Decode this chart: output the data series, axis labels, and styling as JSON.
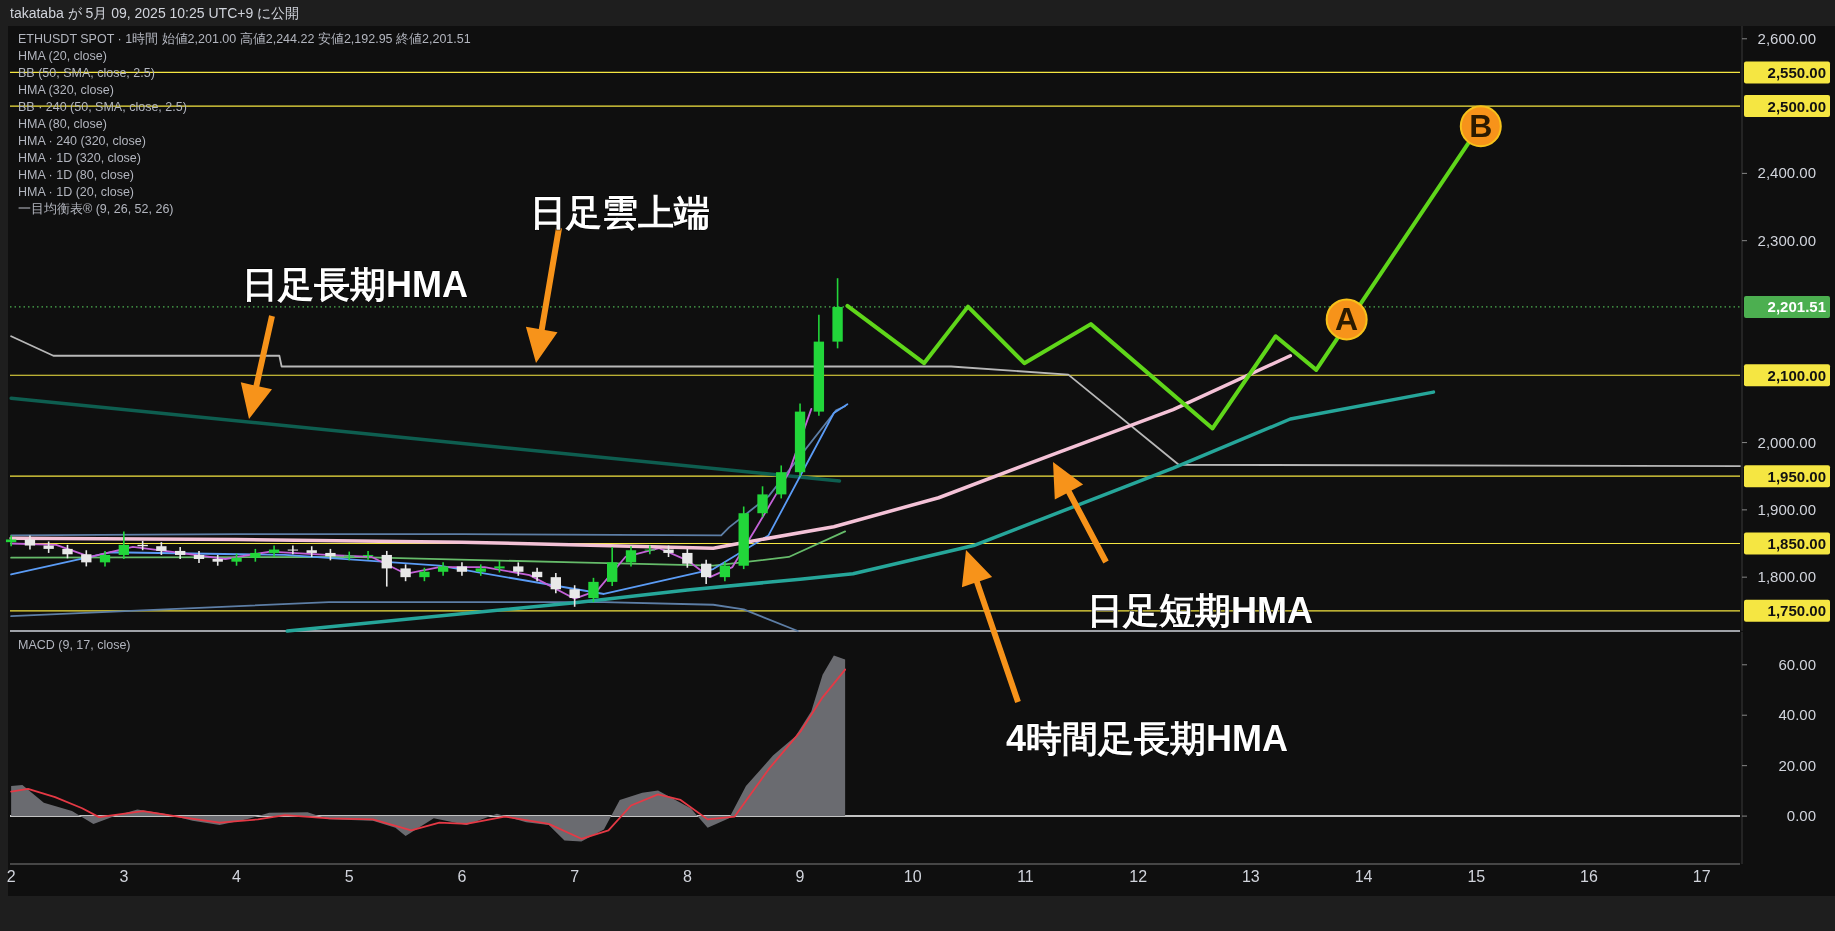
{
  "chart_data": [
    {
      "type": "candlestick",
      "title": "ETHUSDT SPOT · 1時間  始値2,201.00  高値2,244.22  安値2,192.95  終値2,201.51",
      "subtitle": "takataba が 5月 09, 2025 10:25 UTC+9 に公開",
      "x": [
        2.0,
        2.167,
        2.333,
        2.5,
        2.667,
        2.833,
        3.0,
        3.167,
        3.333,
        3.5,
        3.667,
        3.833,
        4.0,
        4.167,
        4.333,
        4.5,
        4.667,
        4.833,
        5.0,
        5.167,
        5.333,
        5.5,
        5.667,
        5.833,
        6.0,
        6.167,
        6.333,
        6.5,
        6.667,
        6.833,
        7.0,
        7.167,
        7.333,
        7.5,
        7.667,
        7.833,
        8.0,
        8.167,
        8.333,
        8.5,
        8.667,
        8.833,
        9.0,
        9.167,
        9.333
      ],
      "ohlc": [
        [
          1852,
          1862,
          1846,
          1856
        ],
        [
          1856,
          1862,
          1841,
          1847
        ],
        [
          1847,
          1853,
          1836,
          1842
        ],
        [
          1842,
          1848,
          1828,
          1834
        ],
        [
          1834,
          1840,
          1816,
          1822
        ],
        [
          1822,
          1839,
          1816,
          1833
        ],
        [
          1833,
          1868,
          1827,
          1848
        ],
        [
          1848,
          1854,
          1840,
          1846
        ],
        [
          1846,
          1852,
          1833,
          1839
        ],
        [
          1839,
          1845,
          1827,
          1833
        ],
        [
          1833,
          1839,
          1821,
          1827
        ],
        [
          1827,
          1833,
          1817,
          1823
        ],
        [
          1823,
          1835,
          1817,
          1829
        ],
        [
          1829,
          1842,
          1823,
          1836
        ],
        [
          1836,
          1847,
          1830,
          1841
        ],
        [
          1841,
          1847,
          1834,
          1840
        ],
        [
          1840,
          1846,
          1830,
          1836
        ],
        [
          1836,
          1842,
          1825,
          1831
        ],
        [
          1831,
          1838,
          1825,
          1832
        ],
        [
          1832,
          1839,
          1826,
          1833
        ],
        [
          1833,
          1839,
          1786,
          1813
        ],
        [
          1813,
          1819,
          1794,
          1800
        ],
        [
          1800,
          1814,
          1794,
          1808
        ],
        [
          1808,
          1822,
          1802,
          1816
        ],
        [
          1816,
          1822,
          1802,
          1808
        ],
        [
          1808,
          1819,
          1802,
          1813
        ],
        [
          1813,
          1824,
          1807,
          1816
        ],
        [
          1816,
          1822,
          1802,
          1808
        ],
        [
          1808,
          1814,
          1794,
          1800
        ],
        [
          1800,
          1806,
          1776,
          1782
        ],
        [
          1782,
          1788,
          1756,
          1769
        ],
        [
          1769,
          1799,
          1763,
          1793
        ],
        [
          1793,
          1845,
          1787,
          1822
        ],
        [
          1822,
          1846,
          1816,
          1840
        ],
        [
          1840,
          1847,
          1834,
          1841
        ],
        [
          1841,
          1847,
          1830,
          1836
        ],
        [
          1836,
          1842,
          1814,
          1820
        ],
        [
          1820,
          1826,
          1790,
          1800
        ],
        [
          1800,
          1823,
          1794,
          1817
        ],
        [
          1817,
          1905,
          1812,
          1895
        ],
        [
          1895,
          1935,
          1889,
          1923
        ],
        [
          1923,
          1966,
          1917,
          1956
        ],
        [
          1956,
          2058,
          1950,
          2046
        ],
        [
          2046,
          2190,
          2040,
          2150
        ],
        [
          2150,
          2244.22,
          2140,
          2201.51
        ]
      ],
      "series": [
        {
          "type": "line",
          "color": "#0e5e50",
          "x": [
            2.0,
            5.5,
            9.35
          ],
          "values": [
            2066,
            2007,
            1943
          ]
        },
        {
          "type": "line",
          "color": "#b8b8b8",
          "x": [
            2.0,
            2.375,
            4.38,
            4.4,
            10.34,
            11.38,
            12.36,
            17.34
          ],
          "values": [
            2158,
            2129,
            2129,
            2113,
            2113,
            2101,
            1967,
            1965
          ]
        },
        {
          "type": "line",
          "color": "#5d7ea6",
          "x": [
            2.0,
            4.0,
            6.0,
            8.3,
            8.37,
            8.72,
            9.32,
            9.4
          ],
          "values": [
            1862,
            1864,
            1864,
            1862,
            1874,
            1920,
            2048,
            2054
          ]
        },
        {
          "type": "line",
          "color": "#5d7ea6",
          "x": [
            2.0,
            4.82,
            7.26,
            8.23,
            8.5,
            8.98
          ],
          "values": [
            1742,
            1763,
            1763,
            1759,
            1752,
            1720
          ]
        },
        {
          "type": "line",
          "color": "#66bb6a",
          "x": [
            2.0,
            5.0,
            7.0,
            8.23,
            8.9,
            9.4
          ],
          "values": [
            1829,
            1830,
            1822,
            1817,
            1830,
            1868
          ]
        },
        {
          "type": "line",
          "color": "#5b9cf6",
          "x": [
            2.0,
            2.88,
            4.43,
            5.8,
            7.26,
            8.23,
            8.72,
            9.3,
            9.42
          ],
          "values": [
            1804,
            1837,
            1833,
            1817,
            1775,
            1812,
            1862,
            2044,
            2057
          ]
        },
        {
          "type": "line",
          "color": "#c462d8",
          "x": [
            2.0,
            2.4,
            2.7,
            3.08,
            3.5,
            3.9,
            4.3,
            4.8,
            5.2,
            5.5,
            5.8,
            6.2,
            6.6,
            7.0,
            7.2,
            7.45,
            7.75,
            8.0,
            8.2,
            8.4,
            8.6,
            8.9,
            9.1
          ],
          "values": [
            1850,
            1848,
            1830,
            1845,
            1836,
            1827,
            1838,
            1833,
            1830,
            1805,
            1815,
            1815,
            1803,
            1768,
            1780,
            1830,
            1843,
            1825,
            1800,
            1815,
            1870,
            1955,
            2050
          ]
        },
        {
          "type": "line",
          "color": "#f4c2d7",
          "x": [
            2.0,
            4.0,
            6.0,
            8.23,
            8.42,
            9.3,
            10.23,
            11.27,
            12.31,
            13.35
          ],
          "values": [
            1858,
            1856,
            1852,
            1843,
            1849,
            1875,
            1918,
            1984,
            2049,
            2129
          ]
        },
        {
          "type": "line",
          "color": "#26a69a",
          "x": [
            4.45,
            7.0,
            8.0,
            9.0,
            9.47,
            10.54,
            12.31,
            13.35,
            14.62
          ],
          "values": [
            1720,
            1762,
            1781,
            1797,
            1805,
            1847,
            1962,
            2035,
            2075
          ]
        },
        {
          "type": "line",
          "color": "#5fd61a",
          "x": [
            9.42,
            10.1,
            10.49,
            10.99,
            11.58,
            12.66,
            13.22,
            13.58,
            14.93
          ],
          "values": [
            2203,
            2118,
            2202,
            2118,
            2176,
            2021,
            2158,
            2108,
            2445
          ]
        }
      ],
      "xlim": [
        1.99,
        17.34
      ],
      "ylim": [
        1720,
        2619
      ],
      "yticks": [
        {
          "value": 1800,
          "label": "1,800.00"
        },
        {
          "value": 1900,
          "label": "1,900.00"
        },
        {
          "value": 2000,
          "label": "2,000.00"
        },
        {
          "value": 2300,
          "label": "2,300.00"
        },
        {
          "value": 2400,
          "label": "2,400.00"
        },
        {
          "value": 2600,
          "label": "2,600.00"
        }
      ],
      "tick_labels": "y",
      "ref_lines": [
        {
          "axis": "y",
          "value": 2550,
          "label": "2,550.00",
          "color": "#f5e642"
        },
        {
          "axis": "y",
          "value": 2500,
          "label": "2,500.00",
          "color": "#f5e642"
        },
        {
          "axis": "y",
          "value": 2100,
          "label": "2,100.00",
          "color": "#f5e642"
        },
        {
          "axis": "y",
          "value": 1950,
          "label": "1,950.00",
          "color": "#f5e642"
        },
        {
          "axis": "y",
          "value": 1850,
          "label": "1,850.00",
          "color": "#f5e642"
        },
        {
          "axis": "y",
          "value": 1750,
          "label": "1,750.00",
          "color": "#f5e642"
        },
        {
          "axis": "y",
          "value": 2201.51,
          "label": "2,201.51",
          "color": "#4caf50",
          "line_style": "dotted"
        }
      ],
      "annotations": [
        "日足雲上端",
        "日足長期HMA",
        "日足短期HMA",
        "4時間足長期HMA",
        {
          "text": "A",
          "x": 13.85,
          "y": 2183
        },
        {
          "text": "B",
          "x": 15.04,
          "y": 2470
        },
        "HMA (20, close)",
        "BB (50, SMA, close, 2.5)",
        "HMA (320, close)",
        "BB · 240 (50, SMA, close, 2.5)",
        "HMA (80, close)",
        "HMA · 240 (320, close)",
        "HMA · 1D (320, close)",
        "HMA · 1D (80, close)",
        "HMA · 1D (20, close)",
        "一目均衡表® (9, 26, 52, 26)"
      ],
      "grid": false
    },
    {
      "type": "area",
      "title": "MACD (9, 17, close)",
      "series": [
        {
          "color": "#6a6b70",
          "x": [
            2.0,
            2.1,
            2.29,
            2.54,
            2.73,
            2.92,
            3.12,
            3.36,
            3.61,
            3.85,
            4.09,
            4.29,
            4.63,
            4.82,
            5.21,
            5.41,
            5.5,
            5.75,
            6.04,
            6.31,
            6.57,
            6.77,
            6.91,
            7.06,
            7.26,
            7.4,
            7.6,
            7.74,
            8.03,
            8.18,
            8.37,
            8.52,
            8.76,
            8.96,
            9.1,
            9.2,
            9.3,
            9.4
          ],
          "values": [
            11.9,
            12.3,
            5.3,
            2,
            -3.1,
            0,
            2.6,
            0.9,
            -1.8,
            -3.5,
            -1.3,
            1.3,
            1.5,
            -1.3,
            -1.8,
            -4.6,
            -7.9,
            -0.9,
            -3.5,
            0.9,
            -2.4,
            -3.5,
            -9.7,
            -10.1,
            -5.3,
            6.4,
            9.3,
            10.1,
            3.1,
            -4.6,
            -0.9,
            11.9,
            24,
            31.7,
            41.6,
            56,
            63.7,
            62.1
          ]
        },
        {
          "type": "line",
          "color": "#e53945",
          "x": [
            2.0,
            2.15,
            2.39,
            2.63,
            2.78,
            3.17,
            3.51,
            3.85,
            4.19,
            4.43,
            4.82,
            5.21,
            5.55,
            5.8,
            6.04,
            6.38,
            6.77,
            7.06,
            7.3,
            7.5,
            7.74,
            7.94,
            8.18,
            8.42,
            8.72,
            9.01,
            9.2,
            9.4
          ],
          "values": [
            9.7,
            10.8,
            7.5,
            3.1,
            -0.4,
            2,
            -0.4,
            -2.6,
            -1.3,
            0.4,
            -0.9,
            -1.3,
            -5.7,
            -2.6,
            -3.1,
            -0.2,
            -3.1,
            -9,
            -5.7,
            4.2,
            8.6,
            6.4,
            -1.3,
            -0.2,
            18.5,
            33.9,
            47.1,
            58.1
          ]
        }
      ],
      "xlim": [
        1.99,
        17.34
      ],
      "ylim": [
        -19,
        73
      ],
      "xticks": [
        2,
        3,
        4,
        5,
        6,
        7,
        8,
        9,
        10,
        11,
        12,
        13,
        14,
        15,
        16,
        17
      ],
      "yticks": [
        {
          "value": 0,
          "label": "0.00"
        },
        {
          "value": 20,
          "label": "20.00"
        },
        {
          "value": 40,
          "label": "40.00"
        },
        {
          "value": 60,
          "label": "60.00"
        }
      ],
      "ref_lines": [
        {
          "axis": "y",
          "value": 0,
          "color": "#ffffff"
        }
      ],
      "grid": false
    }
  ]
}
